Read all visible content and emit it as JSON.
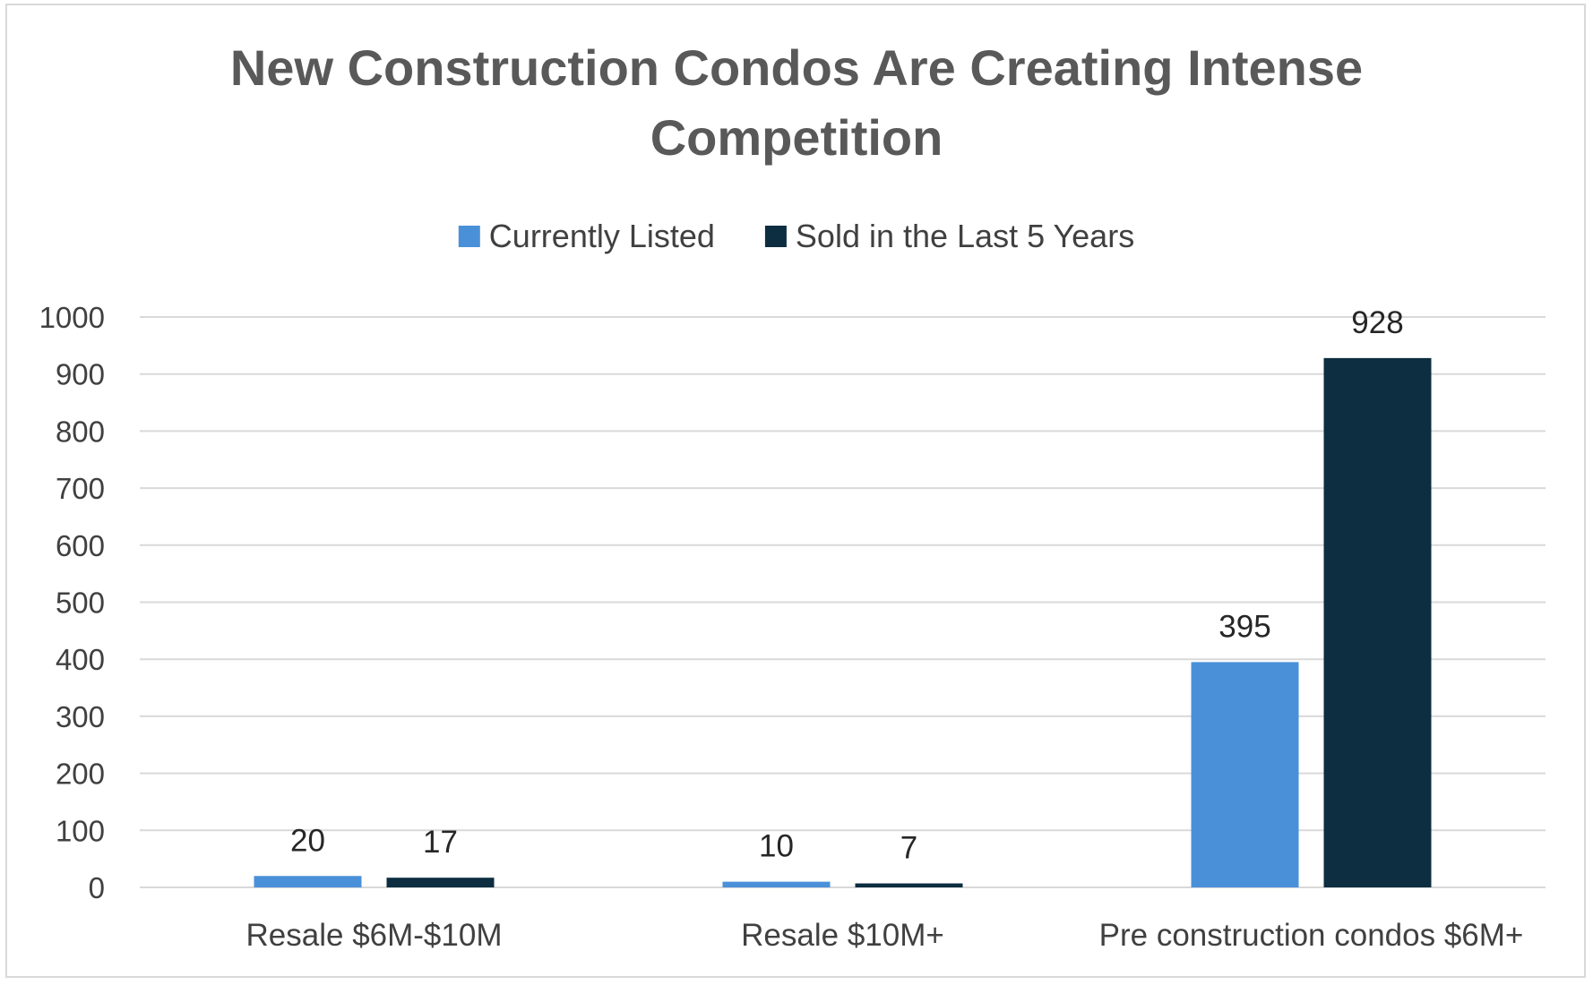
{
  "chart_data": {
    "type": "bar",
    "title_lines": [
      "New Construction Condos Are Creating Intense",
      "Competition"
    ],
    "categories": [
      "Resale $6M-$10M",
      "Resale $10M+",
      "Pre construction condos $6M+"
    ],
    "series": [
      {
        "name": "Currently Listed",
        "values": [
          20,
          10,
          395
        ],
        "color": "#4a90d9"
      },
      {
        "name": "Sold in the Last 5 Years",
        "values": [
          17,
          7,
          928
        ],
        "color": "#0d2d40"
      }
    ],
    "ylim": [
      0,
      1000
    ],
    "yticks": [
      0,
      100,
      200,
      300,
      400,
      500,
      600,
      700,
      800,
      900,
      1000
    ],
    "grid": true,
    "legend_position": "top",
    "data_labels": true
  }
}
